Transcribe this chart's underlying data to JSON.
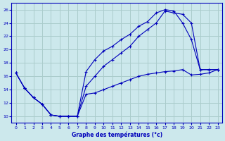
{
  "title": "Graphe des températures (°c)",
  "bg_color": "#cce8ec",
  "grid_color": "#aacccc",
  "line_color": "#0000bb",
  "xlim": [
    -0.5,
    23.5
  ],
  "ylim": [
    9,
    27
  ],
  "yticks": [
    10,
    12,
    14,
    16,
    18,
    20,
    22,
    24,
    26
  ],
  "xticks": [
    0,
    1,
    2,
    3,
    4,
    5,
    6,
    7,
    8,
    9,
    10,
    11,
    12,
    13,
    14,
    15,
    16,
    17,
    18,
    19,
    20,
    21,
    22,
    23
  ],
  "line1_x": [
    0,
    1,
    2,
    3,
    4,
    5,
    6,
    7,
    8,
    9,
    10,
    11,
    12,
    13,
    14,
    15,
    16,
    17,
    18,
    19,
    20,
    21,
    22,
    23
  ],
  "line1_y": [
    16.5,
    14.2,
    12.8,
    11.8,
    10.2,
    10.0,
    10.0,
    10.0,
    16.7,
    18.5,
    19.8,
    20.5,
    21.5,
    22.3,
    23.5,
    24.2,
    25.5,
    26.0,
    25.8,
    24.0,
    21.5,
    17.0,
    17.0,
    17.0
  ],
  "line2_x": [
    0,
    1,
    2,
    3,
    4,
    5,
    6,
    7,
    8,
    9,
    10,
    11,
    12,
    13,
    14,
    15,
    16,
    17,
    18,
    19,
    20,
    21,
    22,
    23
  ],
  "line2_y": [
    16.5,
    14.2,
    12.8,
    11.8,
    10.2,
    10.0,
    10.0,
    10.0,
    14.5,
    16.0,
    17.5,
    18.5,
    19.5,
    20.5,
    22.0,
    23.0,
    24.0,
    25.8,
    25.5,
    25.3,
    24.0,
    17.0,
    17.0,
    17.0
  ],
  "line3_x": [
    0,
    1,
    2,
    3,
    4,
    5,
    6,
    7,
    8,
    9,
    10,
    11,
    12,
    13,
    14,
    15,
    16,
    17,
    18,
    19,
    20,
    21,
    22,
    23
  ],
  "line3_y": [
    16.5,
    14.2,
    12.8,
    11.8,
    10.2,
    10.0,
    10.0,
    10.0,
    13.3,
    13.5,
    14.0,
    14.5,
    15.0,
    15.5,
    16.0,
    16.3,
    16.5,
    16.7,
    16.8,
    17.0,
    16.2,
    16.3,
    16.5,
    17.0
  ]
}
